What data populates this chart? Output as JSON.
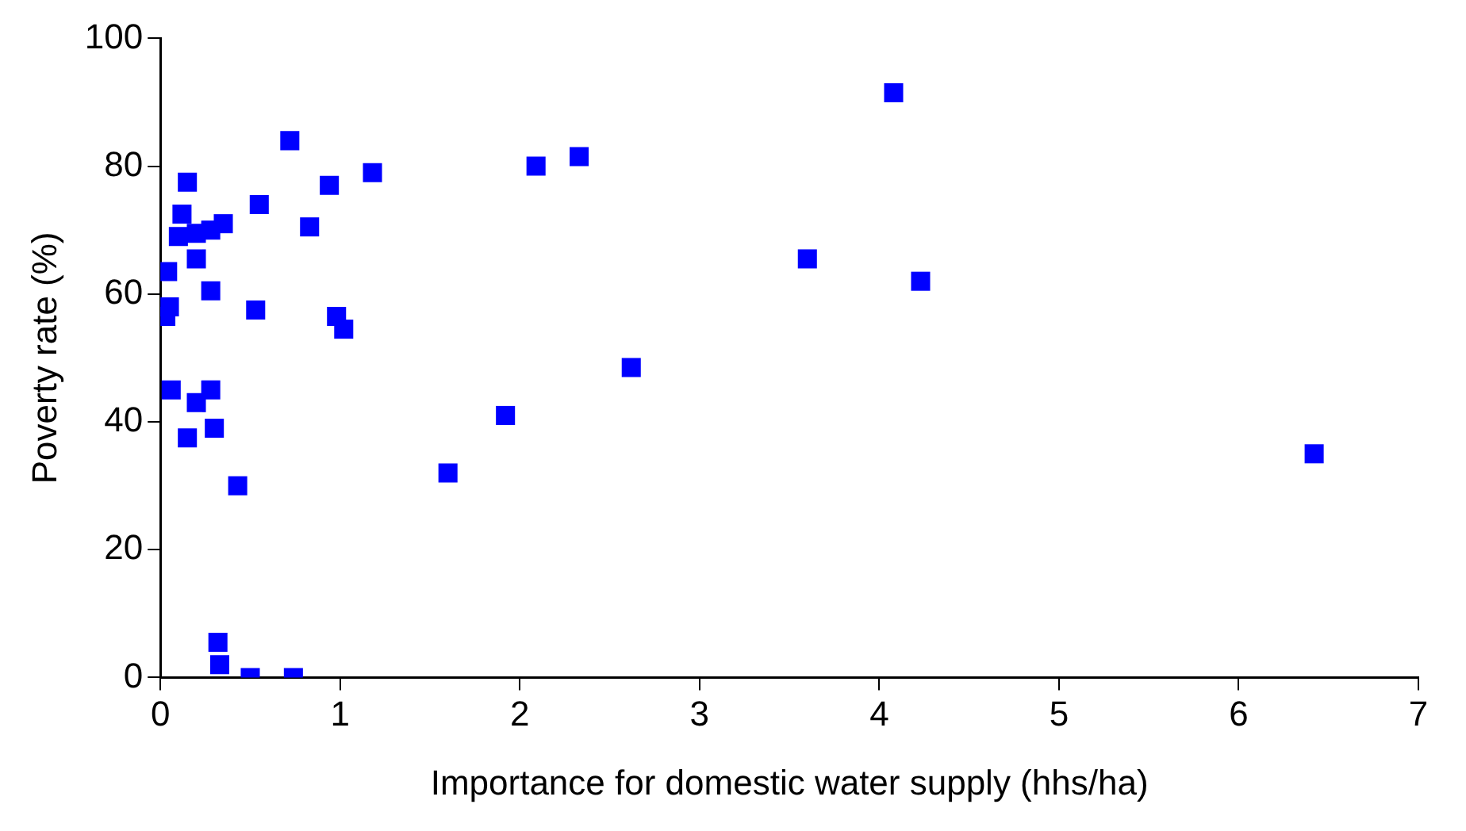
{
  "chart_data": {
    "type": "scatter",
    "xlabel": "Importance for domestic water supply (hhs/ha)",
    "ylabel": "Poverty rate (%)",
    "x": [
      4.08,
      0.72,
      2.33,
      2.09,
      1.18,
      0.15,
      0.94,
      0.55,
      0.12,
      0.35,
      0.83,
      0.28,
      0.1,
      0.2,
      0.2,
      0.04,
      0.28,
      0.05,
      0.03,
      0.53,
      0.98,
      1.02,
      3.6,
      4.23,
      2.62,
      1.92,
      1.6,
      6.42,
      0.06,
      0.28,
      0.2,
      0.15,
      0.3,
      0.43,
      0.32,
      0.33,
      0.5,
      0.74
    ],
    "values": [
      91.5,
      84,
      81.5,
      80,
      79,
      77.5,
      77,
      74,
      72.5,
      71,
      70.5,
      70,
      69,
      69.5,
      65.5,
      63.5,
      60.5,
      58,
      56.5,
      57.5,
      56.5,
      54.5,
      65.5,
      62,
      48.5,
      41,
      32,
      35,
      45,
      45,
      43,
      37.5,
      39,
      30,
      5.5,
      2,
      0,
      0
    ],
    "color": "#0000ff",
    "marker": "square",
    "xlim": [
      0,
      7
    ],
    "xticks": [
      0,
      1,
      2,
      3,
      4,
      5,
      6,
      7
    ],
    "ylim": [
      0,
      100
    ],
    "yticks": [
      0,
      20,
      40,
      60,
      80,
      100
    ],
    "grid": false,
    "legend": false
  }
}
